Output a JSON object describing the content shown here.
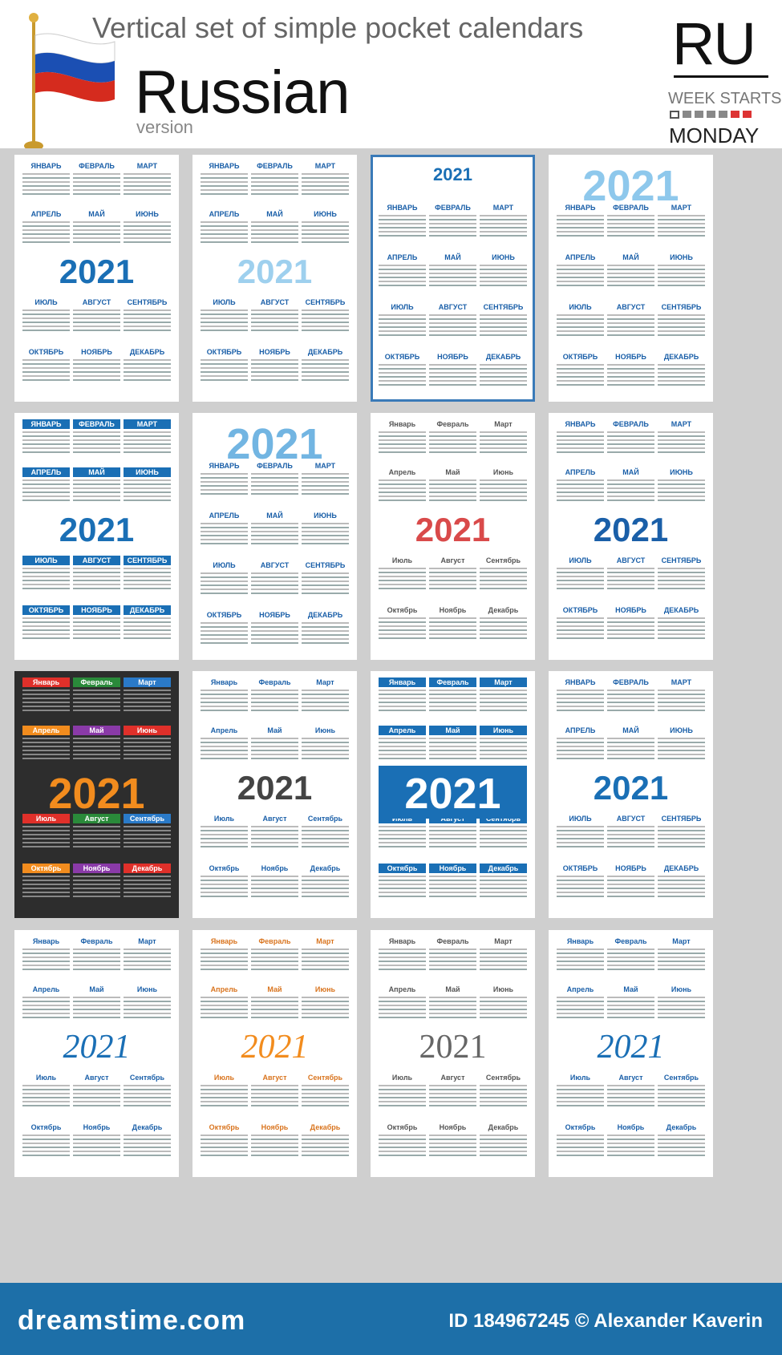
{
  "header": {
    "title": "Vertical  set of simple pocket calendars",
    "language": "Russian",
    "version": "version",
    "code": "RU",
    "week_starts": "WEEK STARTS",
    "day": "MONDAY"
  },
  "months_upper": [
    "ЯНВАРЬ",
    "ФЕВРАЛЬ",
    "МАРТ",
    "АПРЕЛЬ",
    "МАЙ",
    "ИЮНЬ",
    "ИЮЛЬ",
    "АВГУСТ",
    "СЕНТЯБРЬ",
    "ОКТЯБРЬ",
    "НОЯБРЬ",
    "ДЕКАБРЬ"
  ],
  "months_title": [
    "Январь",
    "Февраль",
    "Март",
    "Апрель",
    "Май",
    "Июнь",
    "Июль",
    "Август",
    "Сентябрь",
    "Октябрь",
    "Ноябрь",
    "Декабрь"
  ],
  "year": "2021",
  "cards": [
    {
      "style": "blue-bold",
      "year_color": "#1a6fb5"
    },
    {
      "style": "light",
      "year_color": "#8ec8ec"
    },
    {
      "style": "framed",
      "year_color": "#1a6fb5"
    },
    {
      "style": "light-top",
      "year_color": "#8ec8ec"
    },
    {
      "style": "blue-bars",
      "year_color": "#1a6fb5"
    },
    {
      "style": "outline",
      "year_color": "#5aa9de"
    },
    {
      "style": "red-outline",
      "year_color": "#d94a4a"
    },
    {
      "style": "blue-bold",
      "year_color": "#1a5fa8"
    },
    {
      "style": "dark",
      "year_color": "#f28c1e"
    },
    {
      "style": "circles",
      "year_color": "#444"
    },
    {
      "style": "blue-band",
      "year_color": "#ffffff"
    },
    {
      "style": "blue-circles",
      "year_color": "#1a6fb5"
    },
    {
      "style": "script",
      "year_color": "#1a6fb5"
    },
    {
      "style": "script-orange",
      "year_color": "#f28c1e"
    },
    {
      "style": "gray-serif",
      "year_color": "#666"
    },
    {
      "style": "script-blue",
      "year_color": "#1a6fb5"
    }
  ],
  "footer": {
    "brand": "dreamstime.com",
    "credit": "ID 184967245 © Alexander Kaverin"
  }
}
